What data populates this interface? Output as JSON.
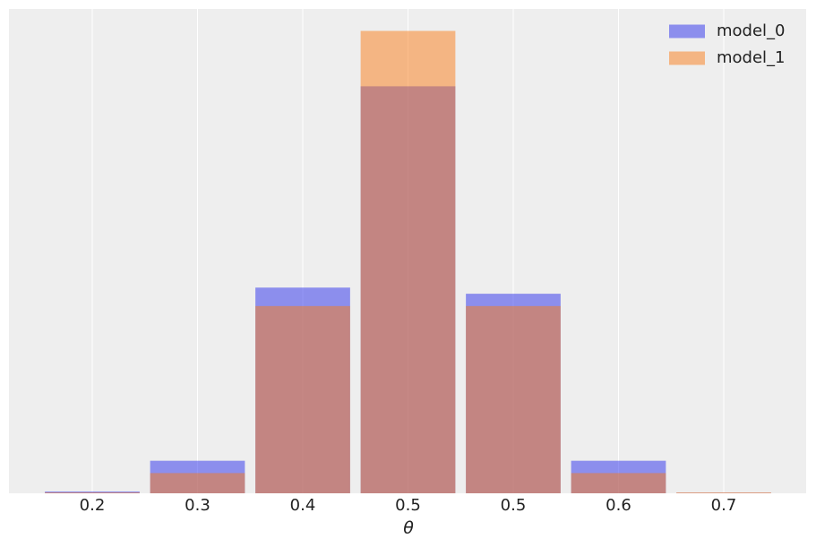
{
  "chart_data": {
    "type": "bar",
    "mode": "overlay",
    "x_label": "θ",
    "categories": [
      "0.2",
      "0.3",
      "0.4",
      "0.5",
      "0.5",
      "0.6",
      "0.7"
    ],
    "series": [
      {
        "name": "model_0",
        "color": "#2a2eec",
        "values": [
          0.002,
          0.037,
          0.234,
          0.463,
          0.227,
          0.037,
          0.0005
        ]
      },
      {
        "name": "model_1",
        "color": "#fa7c17",
        "values": [
          0.001,
          0.023,
          0.213,
          0.526,
          0.213,
          0.023,
          0.001
        ]
      }
    ],
    "alpha": 0.5,
    "ylim": [
      0,
      0.551
    ],
    "grid": true,
    "legend": "upper right"
  }
}
